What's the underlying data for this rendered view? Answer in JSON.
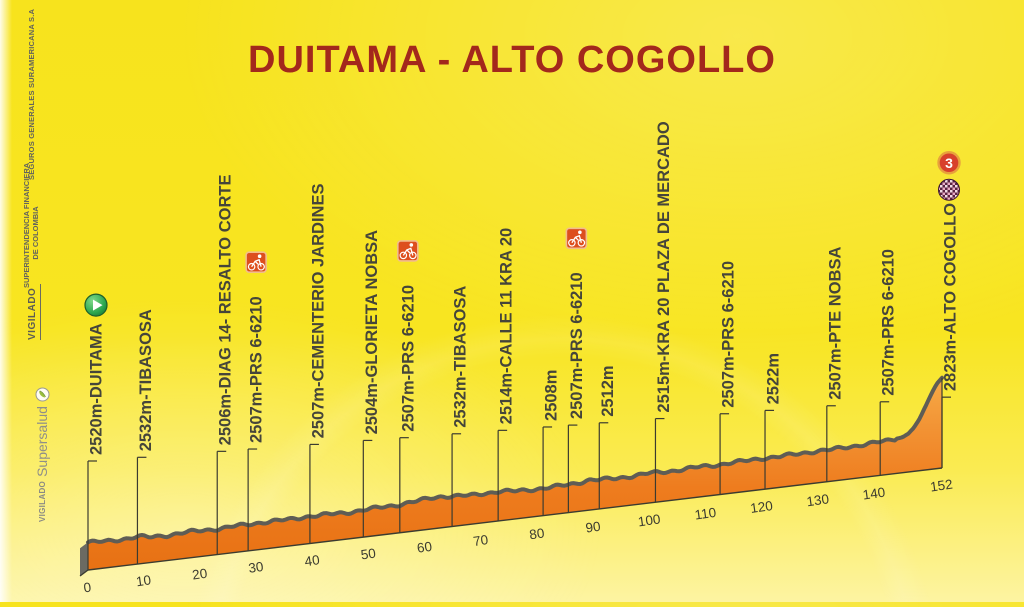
{
  "title": "DUITAMA - ALTO COGOLLO",
  "sidebar": {
    "seguros": "SEGUROS GENERALES SURAMERICANA S.A",
    "superintendencia_line1": "SUPERINTENDENCIA FINANCIERA",
    "superintendencia_line2": "DE COLOMBIA",
    "vigilado": "VIGILADO",
    "supersalud_vigilado": "VIGILADO",
    "supersalud_name": "Supersalud"
  },
  "colors": {
    "background_yellow": "#F7E31D",
    "title_red": "#A3281C",
    "profile_orange": "#EE7C1E",
    "profile_orange_light": "#F7AE4A",
    "profile_line_gray": "#5F5D55",
    "label_text": "#45453A",
    "axis_line": "#3B3B30",
    "start_green": "#2EA84F",
    "sprint_red": "#DD4F1E",
    "cat3_red": "#D8402C",
    "cat3_ring_gold": "#E8A23C",
    "finish_dark": "#5A2342"
  },
  "chart_data": {
    "type": "area",
    "title": "DUITAMA - ALTO COGOLLO",
    "x_unit": "km",
    "x_range": [
      0,
      152
    ],
    "x_ticks": [
      0,
      10,
      20,
      30,
      40,
      50,
      60,
      70,
      80,
      90,
      100,
      110,
      120,
      130,
      140,
      152
    ],
    "elevation_start_m": 2520,
    "elevation_finish_m": 2823,
    "waypoints": [
      {
        "km": 0,
        "elevation_m": 2520,
        "label": "2520m-DUITAMA",
        "icon": "start-icon"
      },
      {
        "km": 8.8,
        "elevation_m": 2532,
        "label": "2532m-TIBASOSA",
        "icon": null
      },
      {
        "km": 23,
        "elevation_m": 2506,
        "label": "2506m-DIAG 14- RESALTO CORTE",
        "icon": null
      },
      {
        "km": 28.5,
        "elevation_m": 2507,
        "label": "2507m-PRS 6-6210",
        "icon": "sprint-icon"
      },
      {
        "km": 39.5,
        "elevation_m": 2507,
        "label": "2507m-CEMENTERIO JARDINES",
        "icon": null
      },
      {
        "km": 49,
        "elevation_m": 2504,
        "label": "2504m-GLORIETA NOBSA",
        "icon": null
      },
      {
        "km": 55.5,
        "elevation_m": 2507,
        "label": "2507m-PRS 6-6210",
        "icon": "sprint-icon"
      },
      {
        "km": 64.8,
        "elevation_m": 2532,
        "label": "2532m-TIBASOSA",
        "icon": null
      },
      {
        "km": 73,
        "elevation_m": 2514,
        "label": "2514m-CALLE 11 KRA 20",
        "icon": null
      },
      {
        "km": 81,
        "elevation_m": 2508,
        "label": "2508m",
        "icon": null
      },
      {
        "km": 85.5,
        "elevation_m": 2507,
        "label": "2507m-PRS 6-6210",
        "icon": "sprint-icon"
      },
      {
        "km": 91,
        "elevation_m": 2512,
        "label": "2512m",
        "icon": null
      },
      {
        "km": 101,
        "elevation_m": 2515,
        "label": "2515m-KRA 20 PLAZA DE MERCADO",
        "icon": null
      },
      {
        "km": 112.5,
        "elevation_m": 2507,
        "label": "2507m-PRS 6-6210",
        "icon": null
      },
      {
        "km": 120.5,
        "elevation_m": 2522,
        "label": "2522m",
        "icon": null
      },
      {
        "km": 131.5,
        "elevation_m": 2507,
        "label": "2507m-PTE NOBSA",
        "icon": null
      },
      {
        "km": 141,
        "elevation_m": 2507,
        "label": "2507m-PRS 6-6210",
        "icon": null
      },
      {
        "km": 152,
        "elevation_m": 2823,
        "label": "2823m-ALTO COGOLLO",
        "icon": "category-3-icon,finish-icon"
      }
    ],
    "category_3_label": "3",
    "profile": [
      [
        0,
        2518
      ],
      [
        3,
        2512
      ],
      [
        6,
        2513
      ],
      [
        9,
        2517
      ],
      [
        11,
        2507
      ],
      [
        14,
        2506
      ],
      [
        18,
        2510
      ],
      [
        23,
        2508
      ],
      [
        26,
        2511
      ],
      [
        28,
        2512
      ],
      [
        32,
        2514
      ],
      [
        36,
        2512
      ],
      [
        39,
        2516
      ],
      [
        43,
        2514
      ],
      [
        46,
        2512
      ],
      [
        49,
        2515
      ],
      [
        52,
        2518
      ],
      [
        55,
        2520
      ],
      [
        58,
        2526
      ],
      [
        61,
        2534
      ],
      [
        63,
        2536
      ],
      [
        65,
        2530
      ],
      [
        68,
        2524
      ],
      [
        71,
        2526
      ],
      [
        73,
        2527
      ],
      [
        76,
        2519
      ],
      [
        79,
        2517
      ],
      [
        81,
        2516
      ],
      [
        84,
        2518
      ],
      [
        87,
        2522
      ],
      [
        89,
        2530
      ],
      [
        91,
        2525
      ],
      [
        94,
        2523
      ],
      [
        97,
        2524
      ],
      [
        100,
        2528
      ],
      [
        103,
        2526
      ],
      [
        106,
        2527
      ],
      [
        109,
        2530
      ],
      [
        112,
        2529
      ],
      [
        115,
        2531
      ],
      [
        118,
        2533
      ],
      [
        120,
        2535
      ],
      [
        123,
        2533
      ],
      [
        126,
        2536
      ],
      [
        129,
        2538
      ],
      [
        132,
        2537
      ],
      [
        135,
        2540
      ],
      [
        138,
        2543
      ],
      [
        141,
        2546
      ],
      [
        143,
        2549
      ],
      [
        145,
        2556
      ],
      [
        146,
        2570
      ],
      [
        147,
        2596
      ],
      [
        148,
        2636
      ],
      [
        149,
        2690
      ],
      [
        150,
        2745
      ],
      [
        151,
        2795
      ],
      [
        152,
        2823
      ]
    ]
  }
}
